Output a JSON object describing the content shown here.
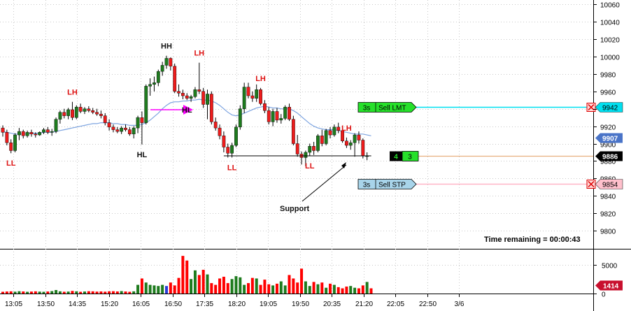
{
  "chart_data": {
    "type": "candlestick",
    "price_axis": {
      "ticks": [
        "10060",
        "10040",
        "10020",
        "10000",
        "9980",
        "9960",
        "9940",
        "9920",
        "9900",
        "9880",
        "9860",
        "9840",
        "9820",
        "9800"
      ],
      "range": [
        9780,
        10065
      ],
      "grid": "dotted"
    },
    "time_axis": {
      "ticks": [
        "13:05",
        "13:50",
        "14:35",
        "15:20",
        "16:05",
        "16:50",
        "17:35",
        "18:20",
        "19:05",
        "19:50",
        "20:35",
        "21:20",
        "22:05",
        "22:50",
        "3/6"
      ]
    },
    "volume_axis": {
      "ticks": [
        "5000",
        "0"
      ],
      "range": [
        0,
        7000
      ]
    },
    "candles": [
      {
        "o": 9918,
        "h": 9921,
        "l": 9908,
        "c": 9913
      },
      {
        "o": 9913,
        "h": 9916,
        "l": 9898,
        "c": 9901
      },
      {
        "o": 9901,
        "h": 9905,
        "l": 9889,
        "c": 9892
      },
      {
        "o": 9892,
        "h": 9912,
        "l": 9890,
        "c": 9910
      },
      {
        "o": 9910,
        "h": 9918,
        "l": 9904,
        "c": 9914
      },
      {
        "o": 9914,
        "h": 9916,
        "l": 9906,
        "c": 9909
      },
      {
        "o": 9909,
        "h": 9915,
        "l": 9907,
        "c": 9913
      },
      {
        "o": 9913,
        "h": 9916,
        "l": 9908,
        "c": 9911
      },
      {
        "o": 9911,
        "h": 9913,
        "l": 9907,
        "c": 9910
      },
      {
        "o": 9910,
        "h": 9914,
        "l": 9909,
        "c": 9913
      },
      {
        "o": 9913,
        "h": 9918,
        "l": 9911,
        "c": 9916
      },
      {
        "o": 9916,
        "h": 9919,
        "l": 9911,
        "c": 9913
      },
      {
        "o": 9913,
        "h": 9917,
        "l": 9909,
        "c": 9914
      },
      {
        "o": 9914,
        "h": 9930,
        "l": 9912,
        "c": 9928
      },
      {
        "o": 9928,
        "h": 9938,
        "l": 9923,
        "c": 9936
      },
      {
        "o": 9936,
        "h": 9940,
        "l": 9929,
        "c": 9932
      },
      {
        "o": 9932,
        "h": 9941,
        "l": 9928,
        "c": 9939
      },
      {
        "o": 9939,
        "h": 9948,
        "l": 9927,
        "c": 9930
      },
      {
        "o": 9930,
        "h": 9944,
        "l": 9928,
        "c": 9942
      },
      {
        "o": 9942,
        "h": 9946,
        "l": 9935,
        "c": 9937
      },
      {
        "o": 9937,
        "h": 9942,
        "l": 9934,
        "c": 9940
      },
      {
        "o": 9940,
        "h": 9943,
        "l": 9936,
        "c": 9938
      },
      {
        "o": 9938,
        "h": 9941,
        "l": 9934,
        "c": 9936
      },
      {
        "o": 9936,
        "h": 9940,
        "l": 9932,
        "c": 9934
      },
      {
        "o": 9934,
        "h": 9938,
        "l": 9929,
        "c": 9932
      },
      {
        "o": 9932,
        "h": 9935,
        "l": 9921,
        "c": 9924
      },
      {
        "o": 9924,
        "h": 9928,
        "l": 9915,
        "c": 9919
      },
      {
        "o": 9919,
        "h": 9922,
        "l": 9913,
        "c": 9916
      },
      {
        "o": 9916,
        "h": 9919,
        "l": 9912,
        "c": 9914
      },
      {
        "o": 9914,
        "h": 9920,
        "l": 9911,
        "c": 9918
      },
      {
        "o": 9918,
        "h": 9922,
        "l": 9914,
        "c": 9916
      },
      {
        "o": 9916,
        "h": 9919,
        "l": 9909,
        "c": 9911
      },
      {
        "o": 9911,
        "h": 9920,
        "l": 9906,
        "c": 9918
      },
      {
        "o": 9918,
        "h": 9932,
        "l": 9912,
        "c": 9930
      },
      {
        "o": 9930,
        "h": 9937,
        "l": 9899,
        "c": 9924
      },
      {
        "o": 9924,
        "h": 9968,
        "l": 9922,
        "c": 9966
      },
      {
        "o": 9966,
        "h": 9975,
        "l": 9955,
        "c": 9968
      },
      {
        "o": 9968,
        "h": 9977,
        "l": 9960,
        "c": 9970
      },
      {
        "o": 9970,
        "h": 9985,
        "l": 9966,
        "c": 9983
      },
      {
        "o": 9983,
        "h": 9994,
        "l": 9978,
        "c": 9990
      },
      {
        "o": 9990,
        "h": 10001,
        "l": 9986,
        "c": 9998
      },
      {
        "o": 9998,
        "h": 9999,
        "l": 9984,
        "c": 9989
      },
      {
        "o": 9989,
        "h": 9992,
        "l": 9958,
        "c": 9960
      },
      {
        "o": 9960,
        "h": 9968,
        "l": 9954,
        "c": 9958
      },
      {
        "o": 9958,
        "h": 9962,
        "l": 9951,
        "c": 9955
      },
      {
        "o": 9955,
        "h": 9958,
        "l": 9950,
        "c": 9952
      },
      {
        "o": 9952,
        "h": 9956,
        "l": 9948,
        "c": 9954
      },
      {
        "o": 9954,
        "h": 9965,
        "l": 9952,
        "c": 9962
      },
      {
        "o": 9962,
        "h": 9993,
        "l": 9957,
        "c": 9960
      },
      {
        "o": 9960,
        "h": 9964,
        "l": 9941,
        "c": 9945
      },
      {
        "o": 9945,
        "h": 9962,
        "l": 9928,
        "c": 9957
      },
      {
        "o": 9957,
        "h": 9960,
        "l": 9922,
        "c": 9925
      },
      {
        "o": 9925,
        "h": 9930,
        "l": 9915,
        "c": 9918
      },
      {
        "o": 9918,
        "h": 9922,
        "l": 9905,
        "c": 9909
      },
      {
        "o": 9909,
        "h": 9914,
        "l": 9890,
        "c": 9896
      },
      {
        "o": 9896,
        "h": 9900,
        "l": 9884,
        "c": 9889
      },
      {
        "o": 9889,
        "h": 9901,
        "l": 9884,
        "c": 9898
      },
      {
        "o": 9898,
        "h": 9922,
        "l": 9896,
        "c": 9919
      },
      {
        "o": 9919,
        "h": 9944,
        "l": 9916,
        "c": 9940
      },
      {
        "o": 9940,
        "h": 9970,
        "l": 9935,
        "c": 9965
      },
      {
        "o": 9965,
        "h": 9970,
        "l": 9952,
        "c": 9955
      },
      {
        "o": 9955,
        "h": 9960,
        "l": 9948,
        "c": 9952
      },
      {
        "o": 9952,
        "h": 9968,
        "l": 9948,
        "c": 9962
      },
      {
        "o": 9962,
        "h": 9964,
        "l": 9944,
        "c": 9946
      },
      {
        "o": 9946,
        "h": 9950,
        "l": 9935,
        "c": 9938
      },
      {
        "o": 9938,
        "h": 9942,
        "l": 9922,
        "c": 9925
      },
      {
        "o": 9925,
        "h": 9940,
        "l": 9920,
        "c": 9937
      },
      {
        "o": 9937,
        "h": 9941,
        "l": 9924,
        "c": 9927
      },
      {
        "o": 9927,
        "h": 9934,
        "l": 9923,
        "c": 9929
      },
      {
        "o": 9929,
        "h": 9944,
        "l": 9927,
        "c": 9942
      },
      {
        "o": 9942,
        "h": 9946,
        "l": 9926,
        "c": 9928
      },
      {
        "o": 9928,
        "h": 9932,
        "l": 9898,
        "c": 9900
      },
      {
        "o": 9900,
        "h": 9910,
        "l": 9885,
        "c": 9888
      },
      {
        "o": 9888,
        "h": 9891,
        "l": 9876,
        "c": 9884
      },
      {
        "o": 9884,
        "h": 9892,
        "l": 9874,
        "c": 9890
      },
      {
        "o": 9890,
        "h": 9900,
        "l": 9886,
        "c": 9897
      },
      {
        "o": 9897,
        "h": 9902,
        "l": 9887,
        "c": 9892
      },
      {
        "o": 9892,
        "h": 9911,
        "l": 9890,
        "c": 9909
      },
      {
        "o": 9909,
        "h": 9916,
        "l": 9897,
        "c": 9900
      },
      {
        "o": 9900,
        "h": 9917,
        "l": 9898,
        "c": 9915
      },
      {
        "o": 9915,
        "h": 9919,
        "l": 9906,
        "c": 9910
      },
      {
        "o": 9910,
        "h": 9922,
        "l": 9908,
        "c": 9919
      },
      {
        "o": 9919,
        "h": 9924,
        "l": 9912,
        "c": 9915
      },
      {
        "o": 9915,
        "h": 9918,
        "l": 9901,
        "c": 9903
      },
      {
        "o": 9903,
        "h": 9907,
        "l": 9895,
        "c": 9898
      },
      {
        "o": 9898,
        "h": 9904,
        "l": 9893,
        "c": 9901
      },
      {
        "o": 9901,
        "h": 9912,
        "l": 9885,
        "c": 9910
      },
      {
        "o": 9910,
        "h": 9914,
        "l": 9900,
        "c": 9904
      },
      {
        "o": 9904,
        "h": 9906,
        "l": 9883,
        "c": 9886
      },
      {
        "o": 9886,
        "h": 9890,
        "l": 9881,
        "c": 9886
      }
    ],
    "volumes": [
      300,
      350,
      380,
      320,
      400,
      360,
      300,
      340,
      380,
      330,
      300,
      350,
      420,
      600,
      380,
      310,
      340,
      450,
      380,
      300,
      350,
      400,
      380,
      330,
      360,
      320,
      380,
      400,
      360,
      420,
      350,
      300,
      380,
      1500,
      2600,
      1900,
      1500,
      1400,
      1300,
      1500,
      1300,
      1900,
      1400,
      2700,
      6500,
      5700,
      2500,
      4000,
      3200,
      4100,
      3300,
      1800,
      1500,
      2600,
      2900,
      1800,
      2500,
      3000,
      2800,
      1500,
      1800,
      2700,
      2600,
      1500,
      2400,
      1600,
      1400,
      1700,
      2100,
      1400,
      3200,
      2600,
      1900,
      4300,
      2100,
      1300,
      2000,
      1600,
      1900,
      1000,
      1700,
      1500,
      1100,
      900,
      1200,
      1300,
      1000,
      900,
      1400,
      2000,
      900
    ],
    "volume_colors": {
      "up": "#1e7b1e",
      "down": "#ff0000",
      "neutral": "#2a3bd8"
    },
    "neutral_volume_indices": [
      40
    ],
    "moving_average": [
      9914,
      9913,
      9912,
      9911,
      9911,
      9911,
      9911,
      9912,
      9912,
      9912,
      9913,
      9913,
      9913,
      9914,
      9915,
      9916,
      9917,
      9918,
      9919,
      9920,
      9921,
      9922,
      9923,
      9923,
      9924,
      9924,
      9924,
      9923,
      9923,
      9922,
      9922,
      9921,
      9921,
      9921,
      9922,
      9924,
      9927,
      9931,
      9935,
      9940,
      9944,
      9947,
      9948,
      9948,
      9949,
      9949,
      9950,
      9950,
      9951,
      9950,
      9950,
      9949,
      9947,
      9944,
      9940,
      9936,
      9933,
      9932,
      9933,
      9935,
      9937,
      9939,
      9941,
      9942,
      9943,
      9942,
      9941,
      9941,
      9940,
      9940,
      9940,
      9938,
      9935,
      9931,
      9927,
      9923,
      9920,
      9918,
      9917,
      9916,
      9916,
      9916,
      9915,
      9914,
      9913,
      9912,
      9911,
      9911,
      9911,
      9910,
      9909
    ],
    "annotations": [
      {
        "text": "LL",
        "color": "#dd1111",
        "anchor_candle": 2,
        "pos": "below"
      },
      {
        "text": "LH",
        "color": "#dd1111",
        "anchor_candle": 17,
        "pos": "above"
      },
      {
        "text": "HL",
        "color": "#111111",
        "anchor_candle": 34,
        "pos": "below"
      },
      {
        "text": "HH",
        "color": "#111111",
        "anchor_candle": 40,
        "pos": "above"
      },
      {
        "text": "LH",
        "color": "#dd1111",
        "anchor_candle": 48,
        "pos": "above"
      },
      {
        "text": "HL",
        "color": "#111111",
        "anchor_candle": 45,
        "pos": "below"
      },
      {
        "text": "LL",
        "color": "#dd1111",
        "anchor_candle": 56,
        "pos": "below"
      },
      {
        "text": "LH",
        "color": "#dd1111",
        "anchor_candle": 63,
        "pos": "above"
      },
      {
        "text": "LL",
        "color": "#dd1111",
        "anchor_candle": 75,
        "pos": "below"
      },
      {
        "text": "LH",
        "color": "#dd1111",
        "anchor_candle": 84,
        "pos": "above"
      },
      {
        "text": "Support",
        "color": "#111111",
        "anchor_candle": 78,
        "pos": "callout"
      }
    ],
    "support_level": 9886,
    "orders": [
      {
        "label_qty": "3s",
        "label_type": "Sell LMT",
        "price": "9942",
        "line_color": "#00e0f0",
        "box_color": "#26e02a",
        "tag_color": "#00e0f0"
      },
      {
        "label_qty": "3s",
        "label_type": "Sell STP",
        "price": "9854",
        "line_color": "#ffb6c8",
        "box_color": "#a8d4ea",
        "tag_color": "#ffc0cc"
      }
    ],
    "position": {
      "qty": "4",
      "count": "3",
      "price": "9886"
    },
    "ma_tag": "9907",
    "last_volume_tag": "1414",
    "time_remaining": "Time remaining = 00:00:43"
  }
}
